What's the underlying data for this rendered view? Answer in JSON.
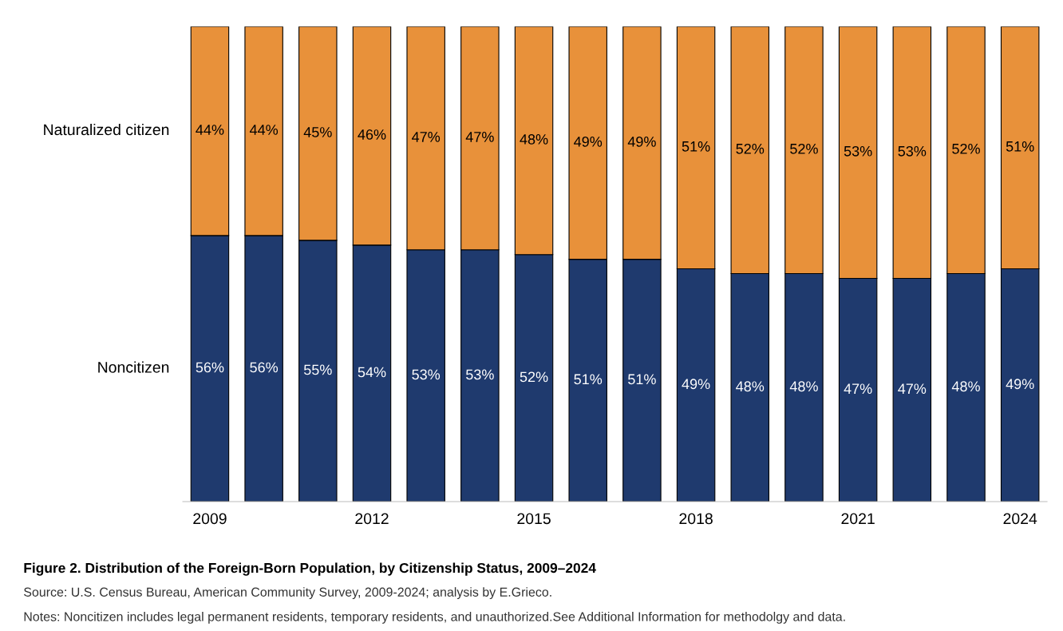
{
  "chart_data": {
    "type": "bar",
    "stacked": true,
    "legend": false,
    "grid": false,
    "title": "Figure 2. Distribution of the Foreign-Born Population, by Citizenship Status, 2009–2024",
    "annotations": [
      "Source: U.S. Census Bureau, American Community Survey, 2009-2024; analysis by E.Grieco.",
      "Notes: Noncitizen includes legal permanent residents, temporary residents, and unauthorized.See Additional Information for methodolgy and data."
    ],
    "categories": [
      "2009",
      null,
      null,
      "2012",
      null,
      null,
      "2015",
      null,
      null,
      "2018",
      null,
      null,
      "2021",
      null,
      null,
      "2024"
    ],
    "series": [
      {
        "name": "Noncitizen",
        "color": "#1f3a6e",
        "values": [
          56,
          56,
          55,
          54,
          53,
          53,
          52,
          51,
          51,
          49,
          48,
          48,
          47,
          47,
          48,
          49
        ],
        "value_labels": [
          "56%",
          "56%",
          "55%",
          "54%",
          "53%",
          "53%",
          "52%",
          "51%",
          "51%",
          "49%",
          "48%",
          "48%",
          "47%",
          "47%",
          "48%",
          "49%"
        ]
      },
      {
        "name": "Naturalized citizen",
        "color": "#e8913a",
        "values": [
          44,
          44,
          45,
          46,
          47,
          47,
          48,
          49,
          49,
          51,
          52,
          52,
          53,
          53,
          52,
          51
        ],
        "value_labels": [
          "44%",
          "44%",
          "45%",
          "46%",
          "47%",
          "47%",
          "48%",
          "49%",
          "49%",
          "51%",
          "52%",
          "52%",
          "53%",
          "53%",
          "52%",
          "51%"
        ]
      }
    ]
  }
}
